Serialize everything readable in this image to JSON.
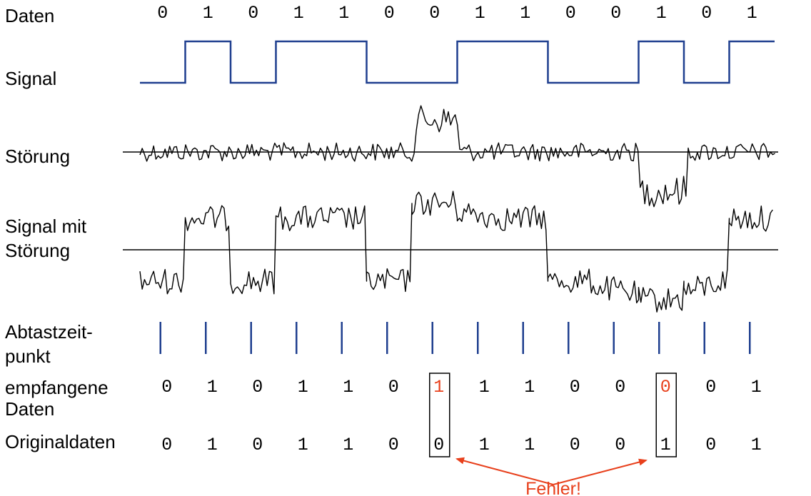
{
  "labels": {
    "daten": "Daten",
    "signal": "Signal",
    "stoerung": "Störung",
    "signal_mit_stoerung_1": "Signal mit",
    "signal_mit_stoerung_2": "Störung",
    "abtast_1": "Abtastzeit-",
    "abtast_2": "punkt",
    "empfangen_1": "empfangene",
    "empfangen_2": "Daten",
    "original": "Originaldaten",
    "fehler": "Fehler!"
  },
  "data_bits": [
    "0",
    "1",
    "0",
    "1",
    "1",
    "0",
    "0",
    "1",
    "1",
    "0",
    "0",
    "1",
    "0",
    "1"
  ],
  "received_bits": [
    "0",
    "1",
    "0",
    "1",
    "1",
    "0",
    "1",
    "1",
    "1",
    "0",
    "0",
    "0",
    "0",
    "1"
  ],
  "original_bits": [
    "0",
    "1",
    "0",
    "1",
    "1",
    "0",
    "0",
    "1",
    "1",
    "0",
    "0",
    "1",
    "0",
    "1"
  ],
  "error_indices": [
    6,
    11
  ],
  "colors": {
    "signal": "#1f3f8f",
    "sample_marks": "#1f3f8f",
    "error": "#e8401c",
    "text": "#000000"
  }
}
